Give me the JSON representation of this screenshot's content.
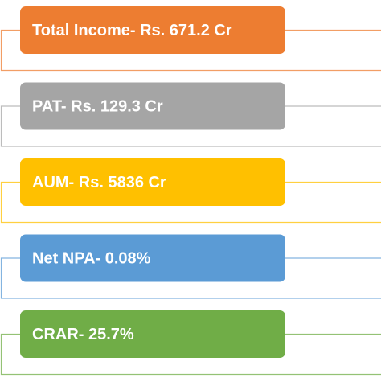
{
  "items": [
    {
      "label": "Total Income- Rs. 671.2 Cr",
      "color": "#ed7d31"
    },
    {
      "label": "PAT- Rs. 129.3 Cr",
      "color": "#a5a5a5"
    },
    {
      "label": "AUM- Rs. 5836 Cr",
      "color": "#ffc000"
    },
    {
      "label": "Net NPA- 0.08%",
      "color": "#5b9bd5"
    },
    {
      "label": "CRAR- 25.7%",
      "color": "#70ad47"
    }
  ]
}
